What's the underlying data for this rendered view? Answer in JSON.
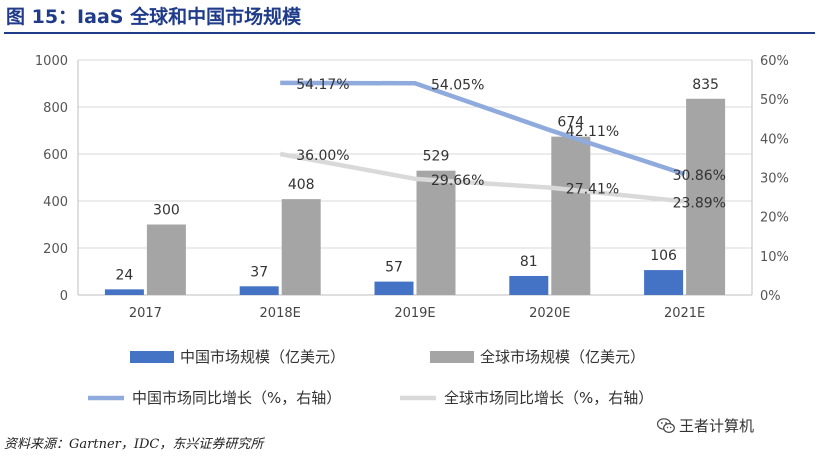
{
  "title": "图 15：IaaS 全球和中国市场规模",
  "source": "资料来源：Gartner，IDC，东兴证券研究所",
  "watermark": "王者计算机",
  "chart_data": {
    "type": "bar+line",
    "categories": [
      "2017",
      "2018E",
      "2019E",
      "2020E",
      "2021E"
    ],
    "bar_series": [
      {
        "name": "中国市场规模（亿美元）",
        "values": [
          24,
          37,
          57,
          81,
          106
        ],
        "color": "#4472c4"
      },
      {
        "name": "全球市场规模（亿美元）",
        "values": [
          300,
          408,
          529,
          674,
          835
        ],
        "color": "#a5a5a5"
      }
    ],
    "line_series": [
      {
        "name": "中国市场同比增长（%，右轴）",
        "values": [
          null,
          54.17,
          54.05,
          42.11,
          30.86
        ],
        "labels": [
          "",
          "54.17%",
          "54.05%",
          "42.11%",
          "30.86%"
        ],
        "color": "#8faadc"
      },
      {
        "name": "全球市场同比增长（%，右轴）",
        "values": [
          null,
          36.0,
          29.66,
          27.41,
          23.89
        ],
        "labels": [
          "",
          "36.00%",
          "29.66%",
          "27.41%",
          "23.89%"
        ],
        "color": "#d9d9d9"
      }
    ],
    "y_left": {
      "min": 0,
      "max": 1000,
      "step": 200,
      "ticks": [
        "0",
        "200",
        "400",
        "600",
        "800",
        "1000"
      ]
    },
    "y_right": {
      "min": 0,
      "max": 60,
      "step": 10,
      "ticks": [
        "0%",
        "10%",
        "20%",
        "30%",
        "40%",
        "50%",
        "60%"
      ]
    },
    "grid": true,
    "legend_position": "bottom"
  }
}
